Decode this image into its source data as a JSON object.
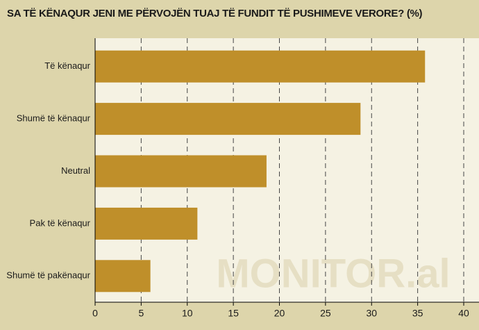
{
  "chart_data": {
    "type": "bar",
    "orientation": "horizontal",
    "title": "SA TË KËNAQUR JENI ME PËRVOJËN TUAJ TË FUNDIT TË PUSHIMEVE VERORE? (%)",
    "categories": [
      "Të kënaqur",
      "Shumë të kënaqur",
      "Neutral",
      "Pak të kënaqur",
      "Shumë të pakënaqur"
    ],
    "values": [
      35.8,
      28.8,
      18.6,
      11.1,
      6.0
    ],
    "color": "#bf8f2a",
    "xlim": [
      0,
      40
    ],
    "xticks": [
      0,
      5,
      10,
      15,
      20,
      25,
      30,
      35,
      40
    ],
    "grid": true,
    "watermark": "MONITOR.al"
  }
}
